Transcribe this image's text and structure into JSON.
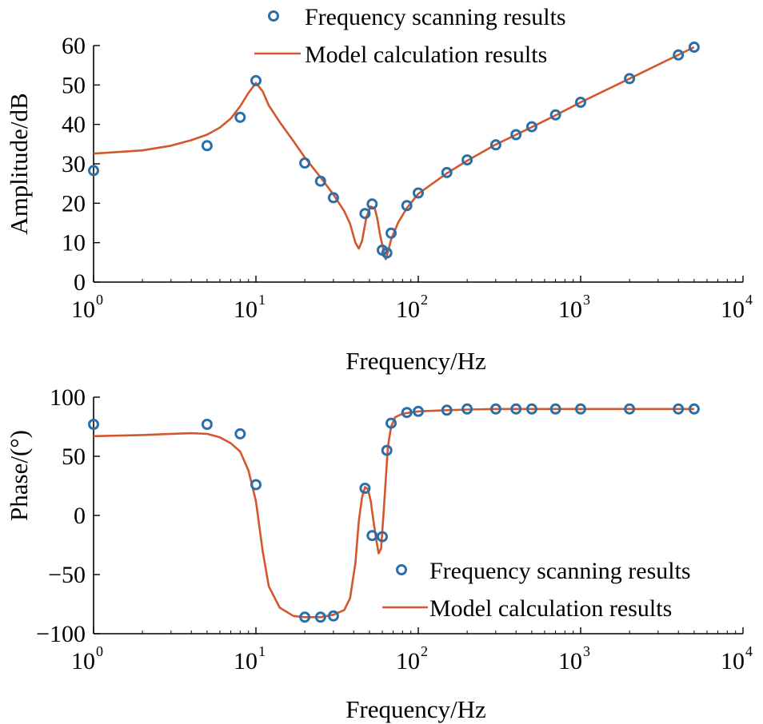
{
  "chart_data": [
    {
      "type": "line",
      "xscale": "log",
      "xlabel": "Frequency/Hz",
      "ylabel": "Amplitude/dB",
      "xlim": [
        1,
        10000
      ],
      "ylim": [
        0,
        60
      ],
      "xticks": [
        {
          "base": "10",
          "exp": "0"
        },
        {
          "base": "10",
          "exp": "1"
        },
        {
          "base": "10",
          "exp": "2"
        },
        {
          "base": "10",
          "exp": "3"
        },
        {
          "base": "10",
          "exp": "4"
        }
      ],
      "yticks": [
        "0",
        "10",
        "20",
        "30",
        "40",
        "50",
        "60"
      ],
      "grid": false,
      "legend": {
        "position": "top",
        "entries": [
          "Frequency scanning results",
          "Model calculation results"
        ]
      },
      "series": [
        {
          "name": "Frequency scanning results",
          "style": "markers",
          "color": "#2b6fa8",
          "x": [
            1,
            5,
            8,
            10,
            20,
            25,
            30,
            47,
            52,
            60,
            64,
            68,
            85,
            100,
            150,
            200,
            300,
            400,
            500,
            700,
            1000,
            2000,
            4000,
            5000
          ],
          "y": [
            28.3,
            34.6,
            41.8,
            51.1,
            30.2,
            25.6,
            21.4,
            17.4,
            19.8,
            8.1,
            7.4,
            12.4,
            19.4,
            22.6,
            27.8,
            31.0,
            34.8,
            37.4,
            39.4,
            42.4,
            45.6,
            51.6,
            57.6,
            59.6
          ]
        },
        {
          "name": "Model calculation results",
          "style": "line",
          "color": "#d4572c",
          "x": [
            1,
            2,
            3,
            4,
            5,
            6,
            7,
            8,
            9,
            10,
            11,
            12,
            14,
            17,
            20,
            25,
            30,
            35,
            38,
            41,
            43,
            45,
            48,
            51,
            54,
            56,
            58,
            60,
            62,
            63,
            65,
            68,
            75,
            85,
            100,
            150,
            200,
            300,
            500,
            700,
            1000,
            2000,
            5000
          ],
          "y": [
            32.6,
            33.4,
            34.6,
            36.0,
            37.4,
            39.2,
            41.5,
            44.6,
            48.0,
            50.5,
            48.4,
            44.8,
            40.6,
            35.8,
            31.6,
            26.6,
            22.2,
            18.0,
            14.8,
            10.0,
            8.5,
            10.4,
            16.6,
            19.2,
            18.6,
            16.0,
            12.2,
            9.4,
            6.6,
            5.8,
            7.6,
            10.8,
            15.0,
            18.8,
            22.4,
            27.6,
            30.8,
            34.9,
            39.3,
            42.3,
            45.6,
            51.6,
            59.6
          ]
        }
      ]
    },
    {
      "type": "line",
      "xscale": "log",
      "xlabel": "Frequency/Hz",
      "ylabel": "Phase/(°)",
      "xlim": [
        1,
        10000
      ],
      "ylim": [
        -100,
        100
      ],
      "xticks": [
        {
          "base": "10",
          "exp": "0"
        },
        {
          "base": "10",
          "exp": "1"
        },
        {
          "base": "10",
          "exp": "2"
        },
        {
          "base": "10",
          "exp": "3"
        },
        {
          "base": "10",
          "exp": "4"
        }
      ],
      "yticks": [
        "−100",
        "−50",
        "0",
        "50",
        "100"
      ],
      "grid": false,
      "legend": {
        "position": "bottom-right",
        "entries": [
          "Frequency scanning results",
          "Model calculation results"
        ]
      },
      "series": [
        {
          "name": "Frequency scanning results",
          "style": "markers",
          "color": "#2b6fa8",
          "x": [
            1,
            5,
            8,
            10,
            20,
            25,
            30,
            47,
            52,
            60,
            64,
            68,
            85,
            100,
            150,
            200,
            300,
            400,
            500,
            700,
            1000,
            2000,
            4000,
            5000
          ],
          "y": [
            77,
            77,
            69,
            26,
            -86,
            -86,
            -85,
            23,
            -17,
            -18,
            55,
            78,
            87,
            88,
            89,
            90,
            90,
            90,
            90,
            90,
            90,
            90,
            90,
            90
          ]
        },
        {
          "name": "Model calculation results",
          "style": "line",
          "color": "#d4572c",
          "x": [
            1,
            2,
            3,
            4,
            5,
            6,
            7,
            8,
            9,
            10,
            11,
            12,
            14,
            17,
            20,
            25,
            30,
            35,
            38,
            41,
            43,
            45,
            47,
            49,
            51,
            53,
            55,
            57,
            59,
            61,
            63,
            65,
            68,
            72,
            80,
            90,
            100,
            150,
            200,
            300,
            500,
            1000,
            2000,
            5000
          ],
          "y": [
            67,
            68,
            69,
            69.5,
            69,
            66,
            61,
            54,
            38,
            12,
            -30,
            -60,
            -78,
            -85,
            -86,
            -86,
            -84,
            -80,
            -70,
            -40,
            -5,
            15,
            24,
            22,
            12,
            -5,
            -20,
            -32,
            -28,
            0,
            30,
            58,
            75,
            83,
            86,
            87,
            88,
            89,
            89.5,
            90,
            90,
            90,
            90,
            90
          ]
        }
      ]
    }
  ]
}
